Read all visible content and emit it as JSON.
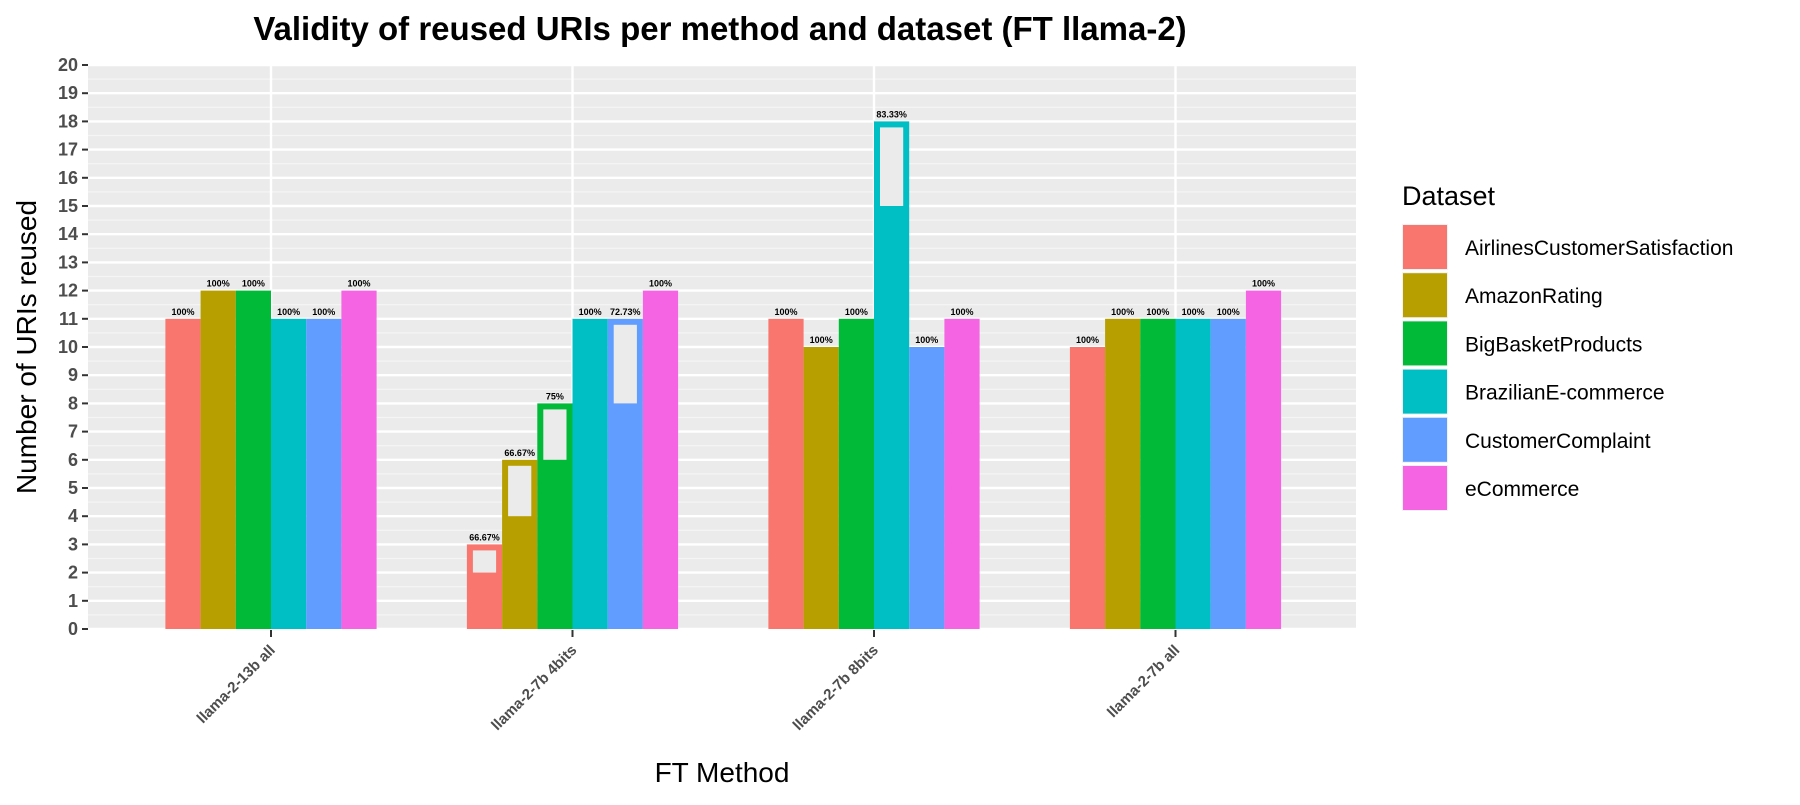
{
  "chart_data": {
    "type": "bar",
    "title": "Validity of reused URIs per method and dataset (FT llama-2)",
    "xlabel": "FT Method",
    "ylabel": "Number of URIs reused",
    "ylim": [
      0,
      20
    ],
    "yticks": [
      0,
      1,
      2,
      3,
      4,
      5,
      6,
      7,
      8,
      9,
      10,
      11,
      12,
      13,
      14,
      15,
      16,
      17,
      18,
      19,
      20
    ],
    "grid": true,
    "legend_title": "Dataset",
    "legend_position": "right",
    "categories": [
      "llama-2-13b all",
      "llama-2-7b 4bits",
      "llama-2-7b 8bits",
      "llama-2-7b all"
    ],
    "series": [
      {
        "name": "AirlinesCustomerSatisfaction",
        "color": "#F8766D",
        "values": [
          11,
          3,
          11,
          10
        ],
        "valid": [
          11,
          2,
          11,
          10
        ],
        "labels": [
          "100%",
          "66.67%",
          "100%",
          "100%"
        ]
      },
      {
        "name": "AmazonRating",
        "color": "#B79F00",
        "values": [
          12,
          6,
          10,
          11
        ],
        "valid": [
          12,
          4,
          10,
          11
        ],
        "labels": [
          "100%",
          "66.67%",
          "100%",
          "100%"
        ]
      },
      {
        "name": "BigBasketProducts",
        "color": "#00BA38",
        "values": [
          12,
          8,
          11,
          11
        ],
        "valid": [
          12,
          6,
          11,
          11
        ],
        "labels": [
          "100%",
          "75%",
          "100%",
          "100%"
        ]
      },
      {
        "name": "BrazilianE-commerce",
        "color": "#00BFC4",
        "values": [
          11,
          11,
          18,
          11
        ],
        "valid": [
          11,
          11,
          15,
          11
        ],
        "labels": [
          "100%",
          "100%",
          "83.33%",
          "100%"
        ]
      },
      {
        "name": "CustomerComplaint",
        "color": "#619CFF",
        "values": [
          11,
          11,
          10,
          11
        ],
        "valid": [
          11,
          8,
          10,
          11
        ],
        "labels": [
          "100%",
          "72.73%",
          "100%",
          "100%"
        ]
      },
      {
        "name": "eCommerce",
        "color": "#F564E3",
        "values": [
          12,
          12,
          11,
          12
        ],
        "valid": [
          12,
          12,
          11,
          12
        ],
        "labels": [
          "100%",
          "100%",
          "100%",
          "100%"
        ]
      }
    ]
  }
}
